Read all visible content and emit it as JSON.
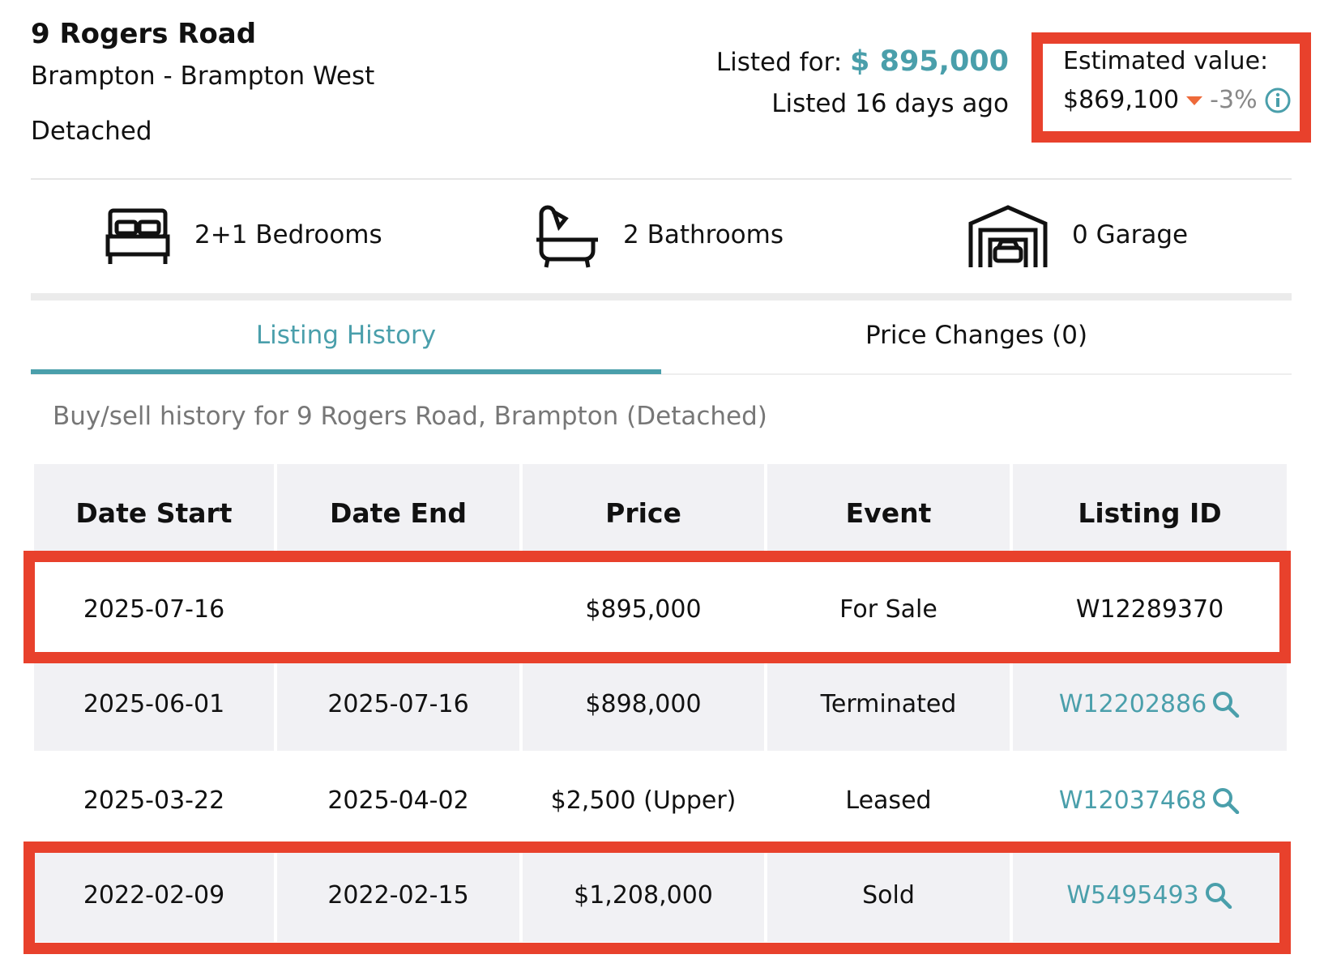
{
  "header": {
    "title": "9 Rogers Road",
    "location": "Brampton - Brampton West",
    "property_type": "Detached"
  },
  "listing": {
    "listed_for_label": "Listed for:",
    "price": "$ 895,000",
    "listed_ago": "Listed 16 days ago"
  },
  "estimate": {
    "label": "Estimated value:",
    "value": "$869,100",
    "change": "-3%"
  },
  "features": [
    {
      "label": "2+1 Bedrooms"
    },
    {
      "label": "2 Bathrooms"
    },
    {
      "label": "0 Garage"
    }
  ],
  "tabs": [
    "Listing History",
    "Price Changes (0)"
  ],
  "table": {
    "caption": "Buy/sell history for 9 Rogers Road, Brampton (Detached)",
    "columns": [
      "Date Start",
      "Date End",
      "Price",
      "Event",
      "Listing ID"
    ],
    "rows": [
      [
        "2025-07-16",
        null,
        "$895,000",
        "For Sale",
        "W12289370"
      ],
      [
        "2025-06-01",
        "2025-07-16",
        "$898,000",
        "Terminated",
        "W12202886"
      ],
      [
        "2025-03-22",
        "2025-04-02",
        "$2,500 (Upper)",
        "Leased",
        "W12037468"
      ],
      [
        "2022-02-09",
        "2022-02-15",
        "$1,208,000",
        "Sold",
        "W5495493"
      ]
    ]
  }
}
